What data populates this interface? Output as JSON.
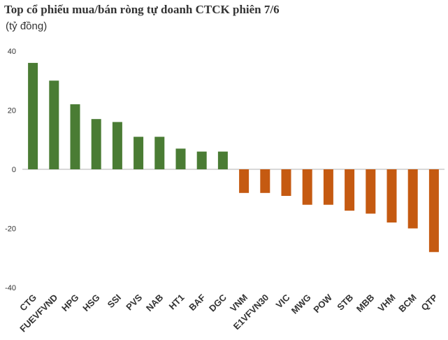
{
  "title": "Top cổ phiếu mua/bán ròng tự doanh CTCK phiên 7/6",
  "subtitle": "(tỷ đồng)",
  "colors": {
    "positive": "#4a7c34",
    "negative": "#c55a11",
    "axis": "#b0b0b0"
  },
  "chart_data": {
    "type": "bar",
    "title": "Top cổ phiếu mua/bán ròng tự doanh CTCK phiên 7/6",
    "ylabel": "(tỷ đồng)",
    "xlabel": "",
    "categories": [
      "CTG",
      "FUEVFVND",
      "HPG",
      "HSG",
      "SSI",
      "PVS",
      "NAB",
      "HT1",
      "BAF",
      "DGC",
      "VNM",
      "E1VFVN30",
      "VIC",
      "MWG",
      "POW",
      "STB",
      "MBB",
      "VHM",
      "BCM",
      "QTP"
    ],
    "values": [
      36,
      30,
      22,
      17,
      16,
      11,
      11,
      7,
      6,
      6,
      -8,
      -8,
      -9,
      -12,
      -12,
      -14,
      -15,
      -18,
      -20,
      -28
    ],
    "ylim": [
      -40,
      40
    ],
    "yticks": [
      40,
      20,
      0,
      -20,
      -40
    ],
    "grid": false,
    "legend": "none"
  }
}
